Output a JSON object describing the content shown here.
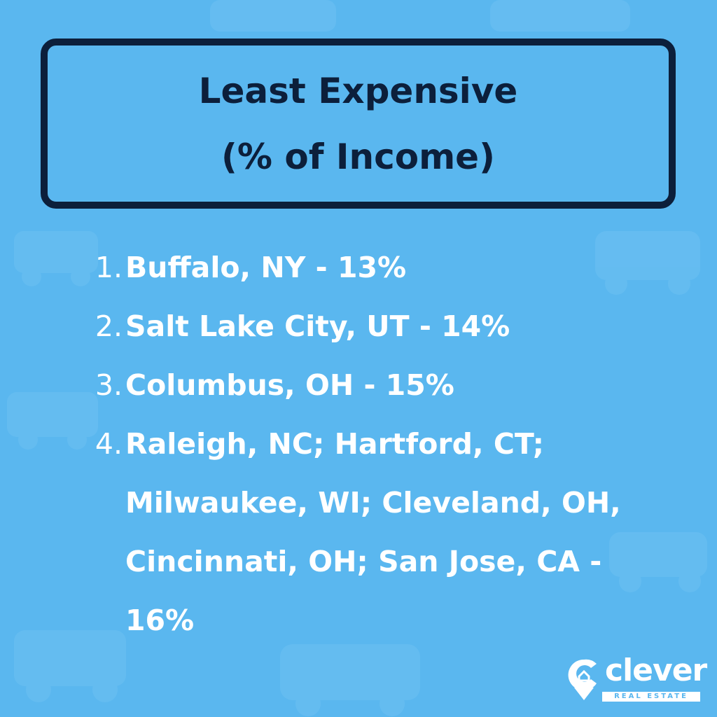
{
  "header": {
    "title_lines": [
      "Least Expensive",
      "(% of Income)"
    ]
  },
  "list": {
    "items": [
      {
        "number": "1.",
        "text": "Buffalo, NY - 13%"
      },
      {
        "number": "2.",
        "text": "Salt Lake City, UT - 14%"
      },
      {
        "number": "3.",
        "text": "Columbus, OH - 15%"
      },
      {
        "number": "4.",
        "text": "Raleigh, NC; Hartford, CT; Milwaukee, WI; Cleveland, OH, Cincinnati, OH; San Jose, CA - 16%"
      }
    ]
  },
  "logo": {
    "name": "clever",
    "tagline": "REAL ESTATE"
  }
}
